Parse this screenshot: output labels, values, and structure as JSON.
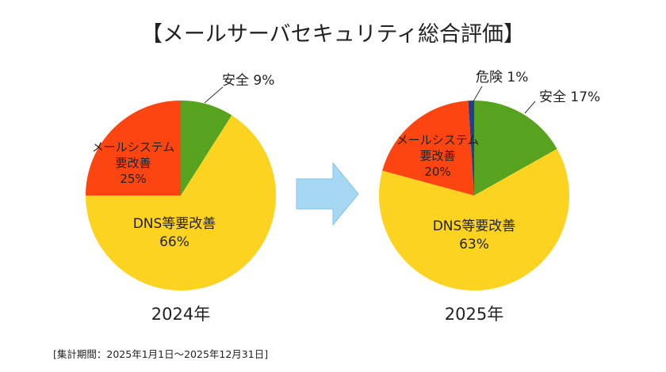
{
  "chart_data": [
    {
      "type": "pie",
      "title": "【メールサーバセキュリティ総合評価】",
      "label": "2024年",
      "start_angle": "top",
      "direction": "clockwise",
      "slices": [
        {
          "name": "安全",
          "value": 9,
          "label": "安全 9%",
          "color": "#57A21E"
        },
        {
          "name": "DNS等要改善",
          "value": 66,
          "label": "DNS等要改善|66%",
          "color": "#FDD322"
        },
        {
          "name": "メールシステム要改善",
          "value": 25,
          "label": "メールシステム|要改善|25%",
          "color": "#FD4511"
        }
      ]
    },
    {
      "type": "pie",
      "label": "2025年",
      "start_angle": "top",
      "direction": "clockwise",
      "slices": [
        {
          "name": "安全",
          "value": 17,
          "label": "安全 17%",
          "color": "#57A21E"
        },
        {
          "name": "DNS等要改善",
          "value": 63,
          "label": "DNS等要改善|63%",
          "color": "#FDD322"
        },
        {
          "name": "メールシステム要改善",
          "value": 20,
          "label": "メールシステム|要改善|20%",
          "color": "#FD4511"
        },
        {
          "name": "危険",
          "value": 1,
          "label": "危険 1%",
          "color": "#1F3F8F"
        }
      ]
    }
  ],
  "title": "【メールサーバセキュリティ総合評価】",
  "footnote": "[集計期間：2025年1月1日～2025年12月31日]",
  "arrow_color": "#A6D8F4"
}
